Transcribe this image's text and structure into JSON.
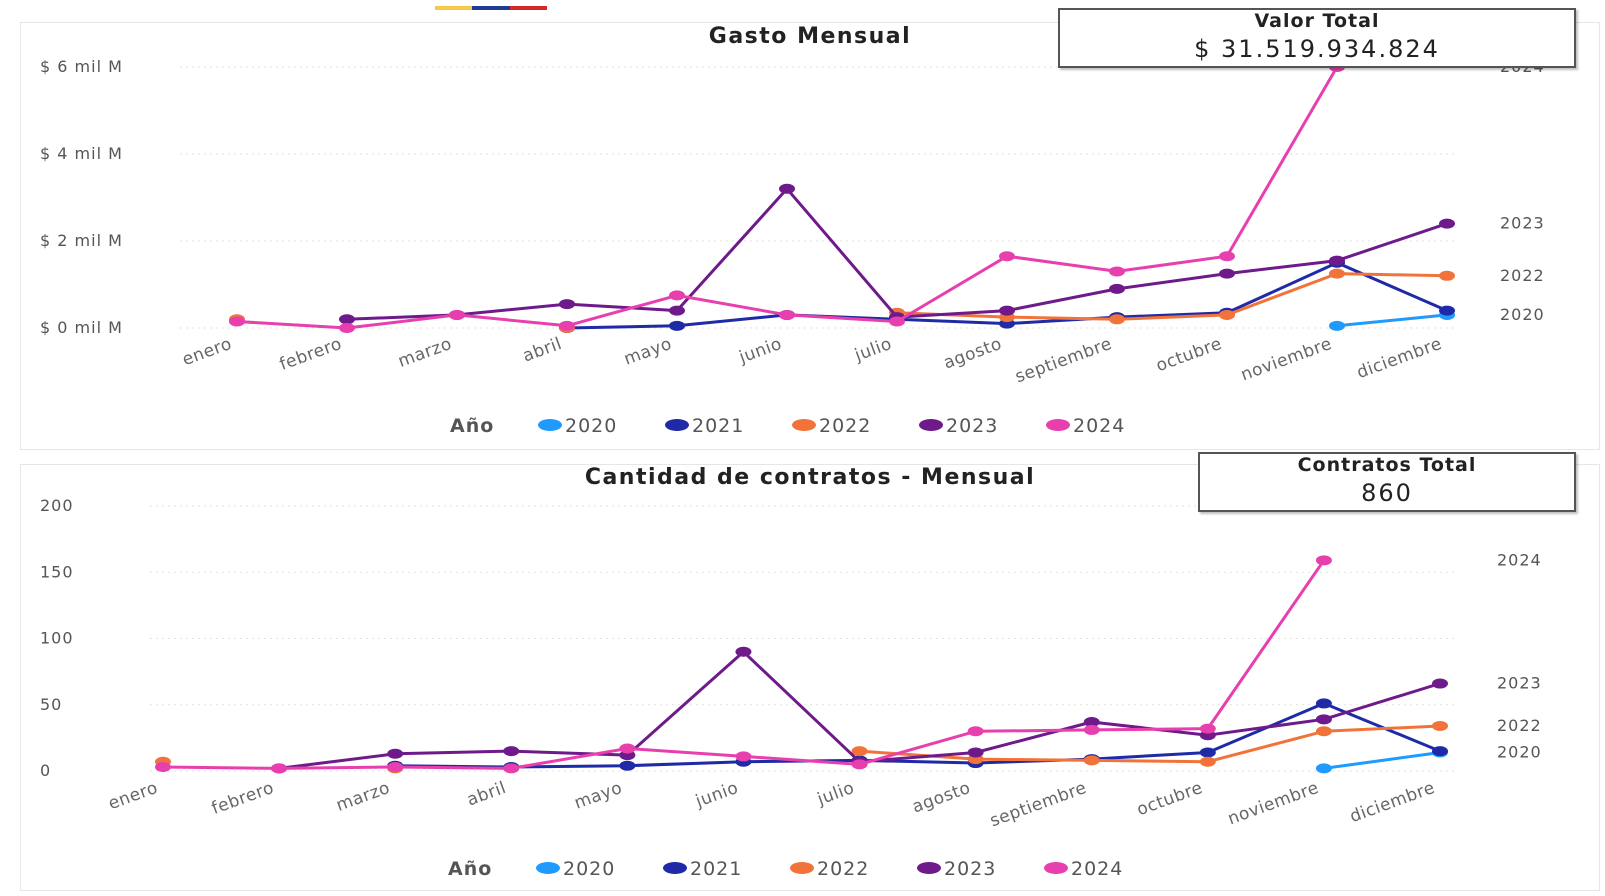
{
  "colors": {
    "2020": "#1f9bff",
    "2021": "#1f2aa6",
    "2022": "#f2733a",
    "2023": "#6e1a8a",
    "2024": "#e83fae",
    "flag": [
      "#f7c948",
      "#1f3a93",
      "#d62828"
    ]
  },
  "kpis": {
    "valor": {
      "label": "Valor Total",
      "value": "$ 31.519.934.824"
    },
    "contratos": {
      "label": "Contratos Total",
      "value": "860"
    }
  },
  "chart_data": [
    {
      "type": "line",
      "title": "Gasto Mensual",
      "xlabel": "",
      "ylabel": "",
      "categories": [
        "enero",
        "febrero",
        "marzo",
        "abril",
        "mayo",
        "junio",
        "julio",
        "agosto",
        "septiembre",
        "octubre",
        "noviembre",
        "diciembre"
      ],
      "ylim": [
        0,
        6
      ],
      "yticks": [
        {
          "value": 0,
          "label": "$ 0 mil M"
        },
        {
          "value": 2,
          "label": "$ 2 mil M"
        },
        {
          "value": 4,
          "label": "$ 4 mil M"
        },
        {
          "value": 6,
          "label": "$ 6 mil M"
        }
      ],
      "legend_title": "Año",
      "legend_position": "bottom",
      "grid": true,
      "series": [
        {
          "name": "2020",
          "values": [
            null,
            null,
            null,
            null,
            null,
            null,
            null,
            null,
            null,
            null,
            0.05,
            0.3
          ]
        },
        {
          "name": "2021",
          "values": [
            null,
            null,
            null,
            0.0,
            0.05,
            0.3,
            0.2,
            0.1,
            0.25,
            0.35,
            1.5,
            0.4
          ]
        },
        {
          "name": "2022",
          "values": [
            0.2,
            null,
            null,
            0.0,
            null,
            null,
            0.35,
            0.25,
            0.2,
            0.3,
            1.25,
            1.2
          ]
        },
        {
          "name": "2023",
          "values": [
            null,
            0.2,
            0.3,
            0.55,
            0.4,
            3.2,
            0.25,
            0.4,
            0.9,
            1.25,
            1.55,
            2.4
          ]
        },
        {
          "name": "2024",
          "values": [
            0.15,
            0.0,
            0.3,
            0.05,
            0.75,
            0.3,
            0.15,
            1.65,
            1.3,
            1.65,
            6.0,
            null
          ]
        }
      ],
      "end_labels": [
        {
          "series": "2024",
          "label": "2024"
        },
        {
          "series": "2023",
          "label": "2023"
        },
        {
          "series": "2022",
          "label": "2022"
        },
        {
          "series": "2020",
          "label": "2020"
        }
      ]
    },
    {
      "type": "line",
      "title": "Cantidad de contratos - Mensual",
      "xlabel": "",
      "ylabel": "",
      "categories": [
        "enero",
        "febrero",
        "marzo",
        "abril",
        "mayo",
        "junio",
        "julio",
        "agosto",
        "septiembre",
        "octubre",
        "noviembre",
        "diciembre"
      ],
      "ylim": [
        0,
        200
      ],
      "yticks": [
        {
          "value": 0,
          "label": "0"
        },
        {
          "value": 50,
          "label": "50"
        },
        {
          "value": 100,
          "label": "100"
        },
        {
          "value": 150,
          "label": "150"
        },
        {
          "value": 200,
          "label": "200"
        }
      ],
      "legend_title": "Año",
      "legend_position": "bottom",
      "grid": true,
      "series": [
        {
          "name": "2020",
          "values": [
            null,
            null,
            null,
            null,
            null,
            null,
            null,
            null,
            null,
            null,
            2,
            14
          ]
        },
        {
          "name": "2021",
          "values": [
            null,
            null,
            4,
            3,
            4,
            7,
            8,
            6,
            9,
            14,
            51,
            15
          ]
        },
        {
          "name": "2022",
          "values": [
            7,
            null,
            2,
            null,
            null,
            null,
            15,
            9,
            8,
            7,
            30,
            34
          ]
        },
        {
          "name": "2023",
          "values": [
            null,
            2,
            13,
            15,
            12,
            90,
            7,
            14,
            37,
            27,
            39,
            66
          ]
        },
        {
          "name": "2024",
          "values": [
            3,
            2,
            3,
            2,
            17,
            11,
            5,
            30,
            31,
            32,
            159,
            null
          ]
        }
      ],
      "end_labels": [
        {
          "series": "2024",
          "label": "2024"
        },
        {
          "series": "2023",
          "label": "2023"
        },
        {
          "series": "2022",
          "label": "2022"
        },
        {
          "series": "2020",
          "label": "2020"
        }
      ]
    }
  ]
}
